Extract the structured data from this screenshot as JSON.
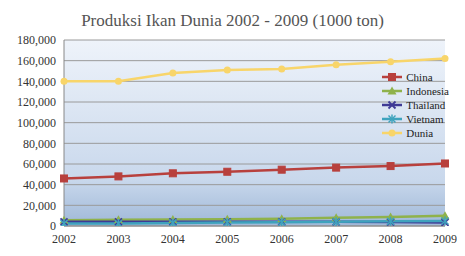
{
  "chart_data": {
    "type": "line",
    "title": "Produksi Ikan Dunia 2002 - 2009 (1000 ton)",
    "categories": [
      "2002",
      "2003",
      "2004",
      "2005",
      "2006",
      "2007",
      "2008",
      "2009"
    ],
    "series": [
      {
        "name": "China",
        "color": "#b8403d",
        "marker": "square",
        "values": [
          46000,
          48000,
          51000,
          52500,
          54500,
          56500,
          58000,
          60500
        ]
      },
      {
        "name": "Indonesia",
        "color": "#8fb24b",
        "marker": "triangle",
        "values": [
          5500,
          6000,
          6200,
          6600,
          7000,
          8000,
          8800,
          9800
        ]
      },
      {
        "name": "Thailand",
        "color": "#3f3a95",
        "marker": "x",
        "values": [
          4000,
          4000,
          4100,
          4100,
          4100,
          4000,
          3800,
          3500
        ]
      },
      {
        "name": "Vietnam",
        "color": "#3fa3bd",
        "marker": "star",
        "values": [
          2400,
          2500,
          3000,
          3400,
          3600,
          4200,
          4500,
          4900
        ]
      },
      {
        "name": "Dunia",
        "color": "#f8d56a",
        "marker": "circle",
        "values": [
          140000,
          140000,
          148000,
          151000,
          152000,
          156000,
          159000,
          162000
        ]
      }
    ],
    "ylim": [
      0,
      180000
    ],
    "yticks": [
      0,
      {
        "value": 20000,
        "label": "20,000"
      },
      {
        "value": 40000,
        "label": "40,000"
      },
      {
        "value": 60000,
        "label": "60,000"
      },
      {
        "value": 80000,
        "label": "80,000"
      },
      {
        "value": 100000,
        "label": "100,000"
      },
      {
        "value": 120000,
        "label": "120,000"
      },
      {
        "value": 140000,
        "label": "140,000"
      },
      {
        "value": 160000,
        "label": "160,000"
      },
      {
        "value": 180000,
        "label": "180,000"
      }
    ],
    "grid": true,
    "legend": "right"
  }
}
